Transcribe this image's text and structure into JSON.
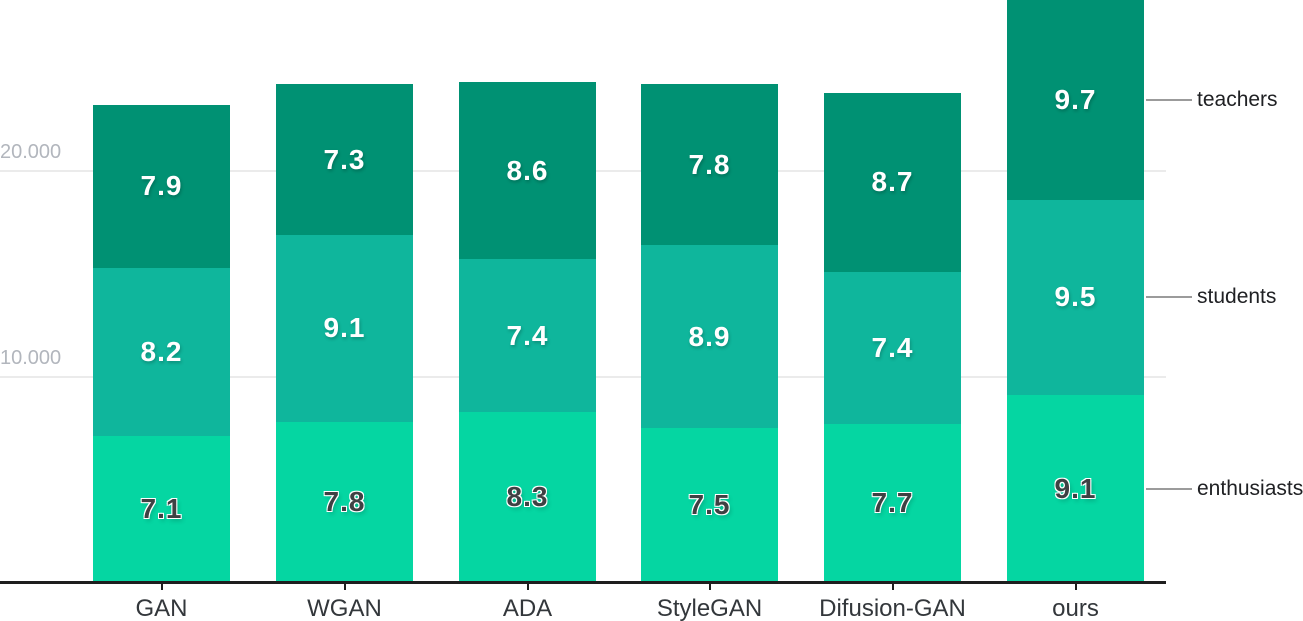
{
  "chart_data": {
    "type": "bar",
    "stacked": true,
    "orientation": "vertical",
    "categories": [
      "GAN",
      "WGAN",
      "ADA",
      "StyleGAN",
      "Difusion-GAN",
      "ours"
    ],
    "series": [
      {
        "name": "enthusiasts",
        "color": "#05d6a2",
        "label_color": "#3e4143",
        "label_style": "dark",
        "values": [
          7.1,
          7.8,
          8.3,
          7.5,
          7.7,
          9.1
        ]
      },
      {
        "name": "students",
        "color": "#0fb69c",
        "label_color": "#ffffff",
        "label_style": "light",
        "values": [
          8.2,
          9.1,
          7.4,
          8.9,
          7.4,
          9.5
        ]
      },
      {
        "name": "teachers",
        "color": "#009173",
        "label_color": "#ffffff",
        "label_style": "light",
        "values": [
          7.9,
          7.3,
          8.6,
          7.8,
          8.7,
          9.7
        ]
      }
    ],
    "value_unit_multiplier": 1000,
    "y_axis": {
      "ticks": [
        {
          "value": 10000,
          "label": "10.000"
        },
        {
          "value": 20000,
          "label": "20.000"
        }
      ],
      "range": [
        0,
        28350
      ]
    },
    "legend": {
      "position": "right",
      "entries": [
        "teachers",
        "students",
        "enthusiasts"
      ]
    },
    "grid": true,
    "title": ""
  },
  "colors": {
    "background": "#ffffff",
    "gridline": "#ebebeb",
    "axis_line": "#1e1e1e",
    "tick_mark": "#1e1e1e",
    "y_tick_label": "#b2b6bd",
    "x_tick_label": "#33373b",
    "legend_label": "#202124",
    "legend_line": "#9b9b9b"
  }
}
